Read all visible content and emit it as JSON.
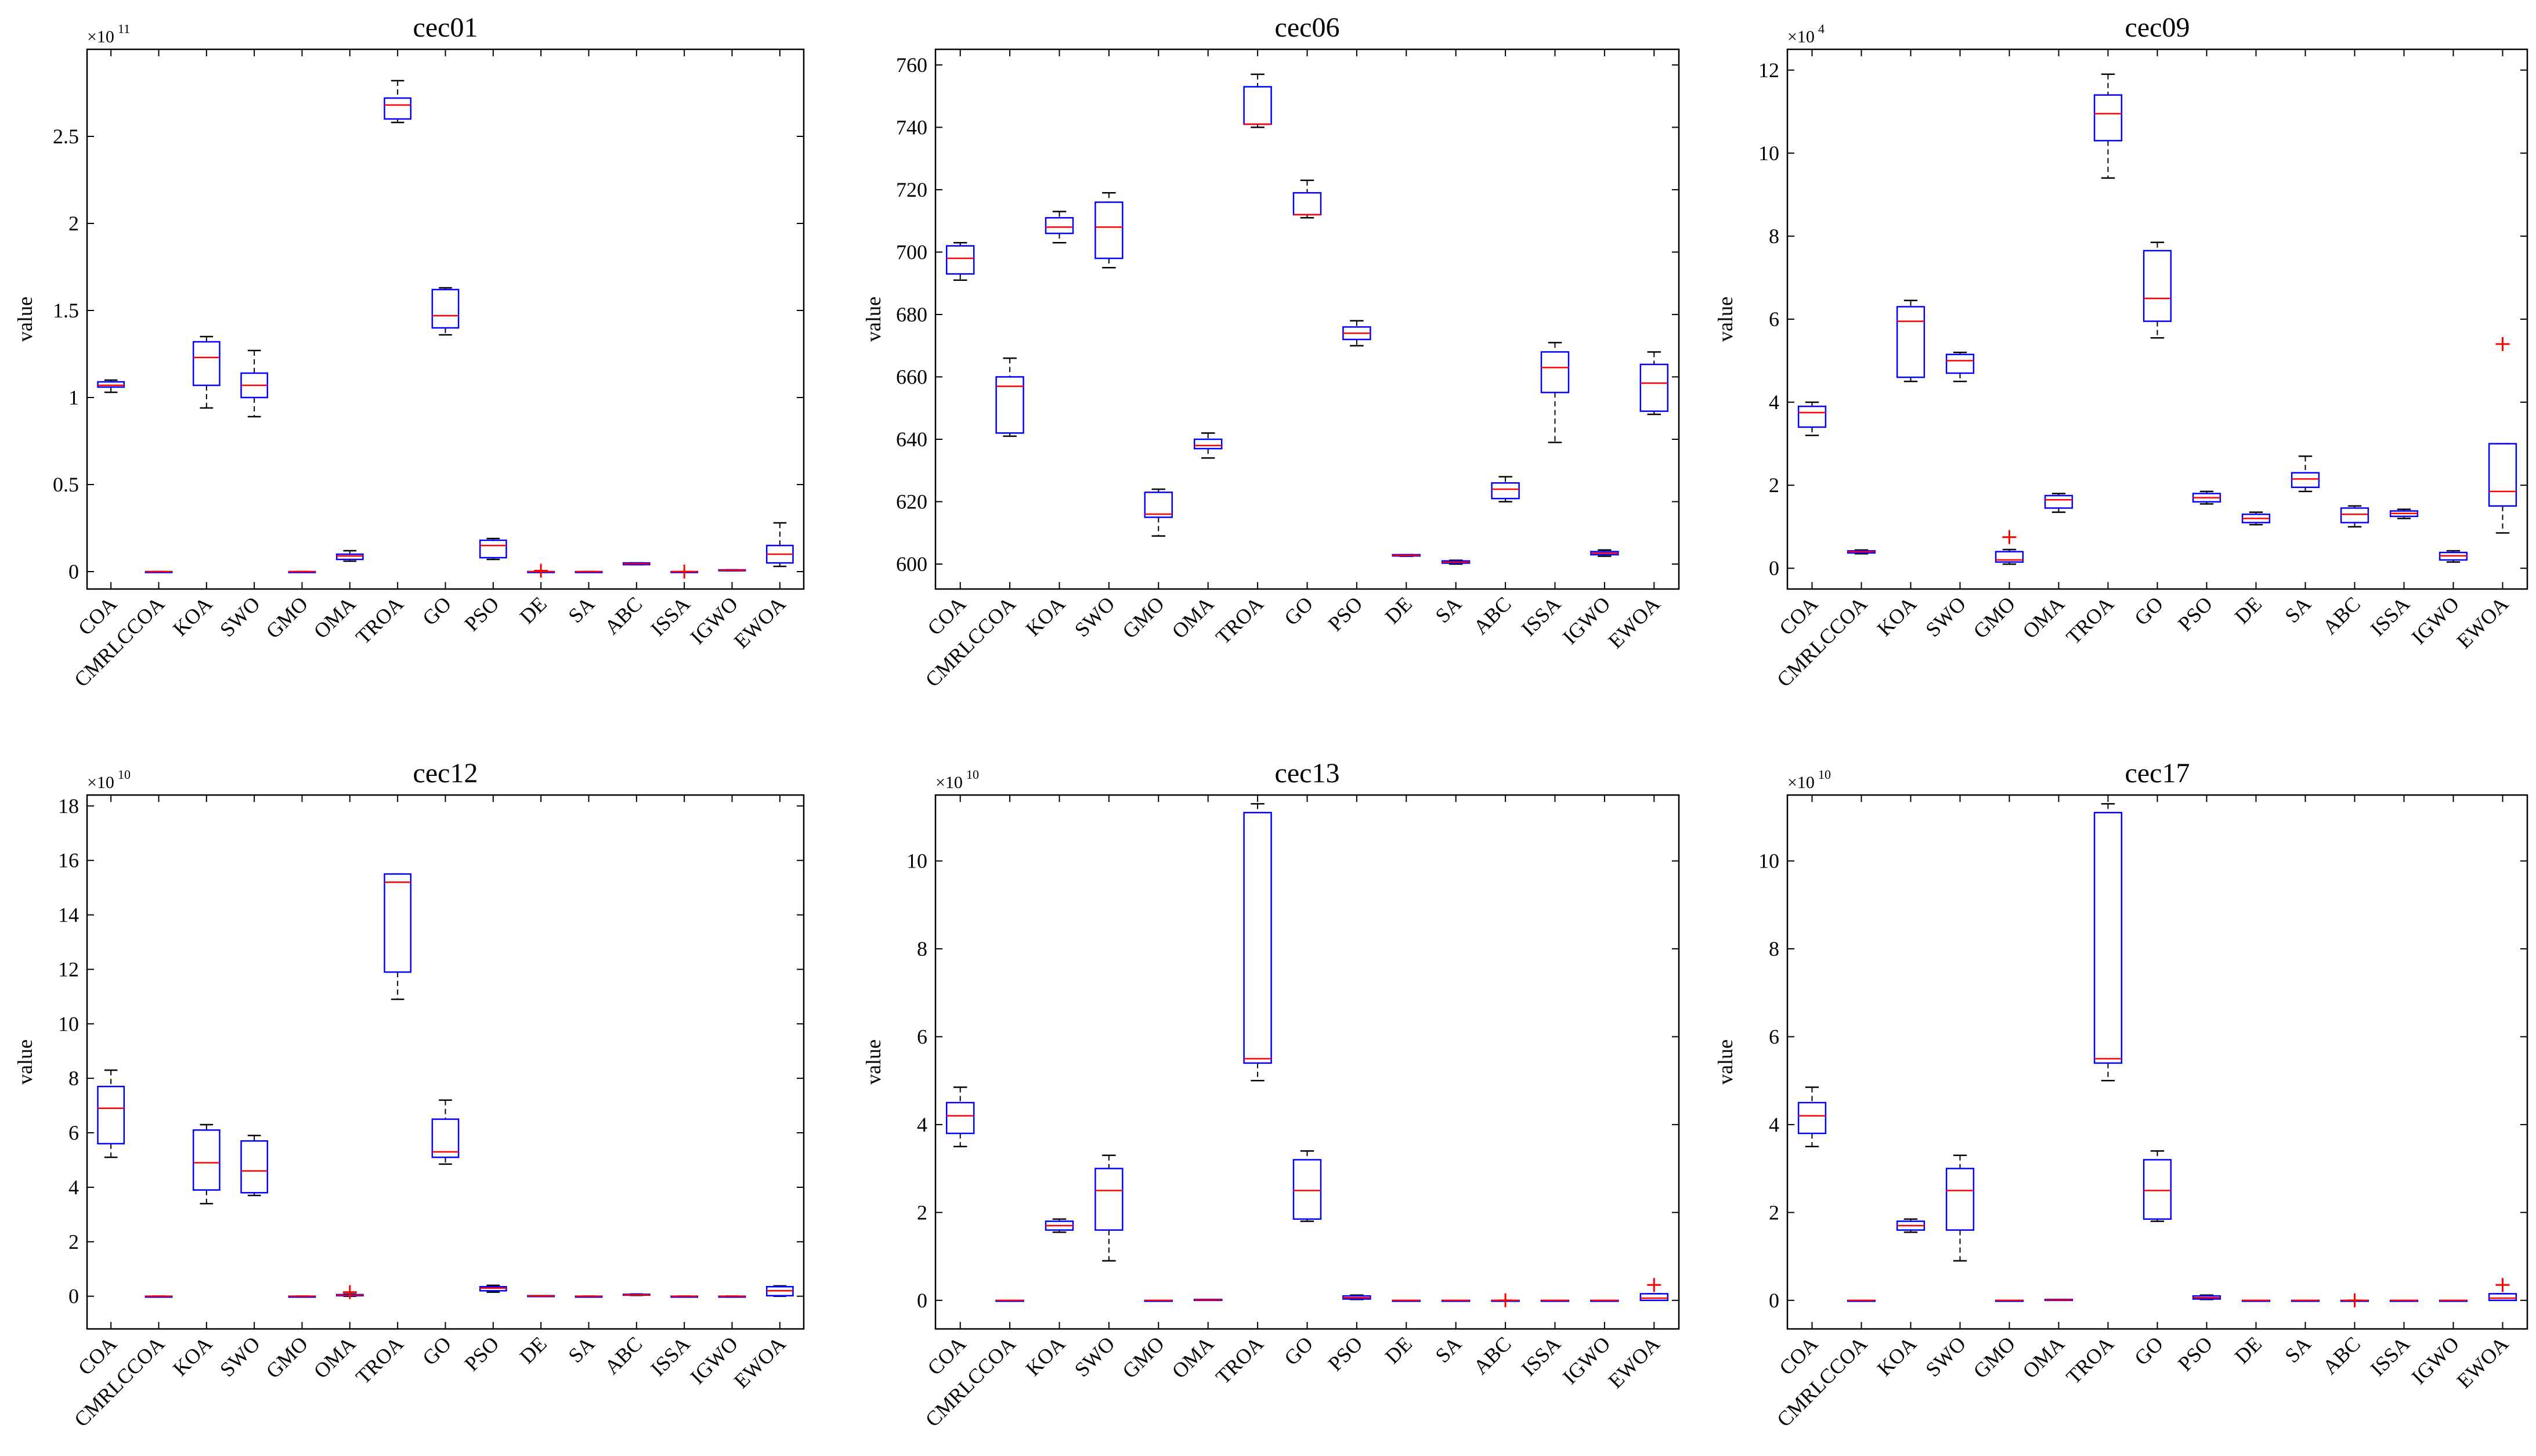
{
  "chart_data": [
    {
      "type": "box",
      "title": "cec01",
      "ylabel": "value",
      "multiplier": "×10",
      "exponent": "11",
      "ylim": [
        -0.1,
        3.0
      ],
      "yticks": [
        0,
        0.5,
        1,
        1.5,
        2,
        2.5
      ],
      "ytick_labels": [
        "0",
        "0.5",
        "1",
        "1.5",
        "2",
        "2.5"
      ],
      "categories": [
        "COA",
        "CMRLCCOA",
        "KOA",
        "SWO",
        "GMO",
        "OMA",
        "TROA",
        "GO",
        "PSO",
        "DE",
        "SA",
        "ABC",
        "ISSA",
        "IGWO",
        "EWOA"
      ],
      "boxes": [
        {
          "min": 1.03,
          "q1": 1.06,
          "median": 1.07,
          "q3": 1.09,
          "max": 1.1,
          "outliers": []
        },
        {
          "min": 0.0,
          "q1": 0.0,
          "median": 0.0,
          "q3": 0.0,
          "max": 0.0,
          "outliers": []
        },
        {
          "min": 0.94,
          "q1": 1.07,
          "median": 1.23,
          "q3": 1.32,
          "max": 1.35,
          "outliers": []
        },
        {
          "min": 0.89,
          "q1": 1.0,
          "median": 1.07,
          "q3": 1.14,
          "max": 1.27,
          "outliers": []
        },
        {
          "min": 0.0,
          "q1": 0.0,
          "median": 0.0,
          "q3": 0.0,
          "max": 0.0,
          "outliers": []
        },
        {
          "min": 0.06,
          "q1": 0.07,
          "median": 0.09,
          "q3": 0.1,
          "max": 0.12,
          "outliers": []
        },
        {
          "min": 2.58,
          "q1": 2.6,
          "median": 2.68,
          "q3": 2.72,
          "max": 2.82,
          "outliers": []
        },
        {
          "min": 1.36,
          "q1": 1.4,
          "median": 1.47,
          "q3": 1.62,
          "max": 1.63,
          "outliers": []
        },
        {
          "min": 0.07,
          "q1": 0.08,
          "median": 0.15,
          "q3": 0.18,
          "max": 0.19,
          "outliers": []
        },
        {
          "min": 0.0,
          "q1": 0.0,
          "median": 0.0,
          "q3": 0.0,
          "max": 0.0,
          "outliers": [
            0.005
          ]
        },
        {
          "min": 0.0,
          "q1": 0.0,
          "median": 0.0,
          "q3": 0.0,
          "max": 0.0,
          "outliers": []
        },
        {
          "min": 0.04,
          "q1": 0.04,
          "median": 0.045,
          "q3": 0.05,
          "max": 0.05,
          "outliers": []
        },
        {
          "min": 0.0,
          "q1": 0.0,
          "median": 0.0,
          "q3": 0.0,
          "max": 0.0,
          "outliers": [
            0.0
          ]
        },
        {
          "min": 0.005,
          "q1": 0.006,
          "median": 0.008,
          "q3": 0.01,
          "max": 0.01,
          "outliers": []
        },
        {
          "min": 0.03,
          "q1": 0.05,
          "median": 0.1,
          "q3": 0.15,
          "max": 0.28,
          "outliers": []
        }
      ]
    },
    {
      "type": "box",
      "title": "cec06",
      "ylabel": "value",
      "multiplier": "",
      "exponent": "",
      "ylim": [
        592,
        765
      ],
      "yticks": [
        600,
        620,
        640,
        660,
        680,
        700,
        720,
        740,
        760
      ],
      "ytick_labels": [
        "600",
        "620",
        "640",
        "660",
        "680",
        "700",
        "720",
        "740",
        "760"
      ],
      "categories": [
        "COA",
        "CMRLCCOA",
        "KOA",
        "SWO",
        "GMO",
        "OMA",
        "TROA",
        "GO",
        "PSO",
        "DE",
        "SA",
        "ABC",
        "ISSA",
        "IGWO",
        "EWOA"
      ],
      "boxes": [
        {
          "min": 691,
          "q1": 693,
          "median": 698,
          "q3": 702,
          "max": 703,
          "outliers": []
        },
        {
          "min": 641,
          "q1": 642,
          "median": 657,
          "q3": 660,
          "max": 666,
          "outliers": []
        },
        {
          "min": 703,
          "q1": 706,
          "median": 708,
          "q3": 711,
          "max": 713,
          "outliers": []
        },
        {
          "min": 695,
          "q1": 698,
          "median": 708,
          "q3": 716,
          "max": 719,
          "outliers": []
        },
        {
          "min": 609,
          "q1": 615,
          "median": 616,
          "q3": 623,
          "max": 624,
          "outliers": []
        },
        {
          "min": 634,
          "q1": 637,
          "median": 638,
          "q3": 640,
          "max": 642,
          "outliers": []
        },
        {
          "min": 740,
          "q1": 741,
          "median": 741,
          "q3": 753,
          "max": 757,
          "outliers": []
        },
        {
          "min": 711,
          "q1": 712,
          "median": 712,
          "q3": 719,
          "max": 723,
          "outliers": []
        },
        {
          "min": 670,
          "q1": 672,
          "median": 674,
          "q3": 676,
          "max": 678,
          "outliers": []
        },
        {
          "min": 602.5,
          "q1": 602.6,
          "median": 602.8,
          "q3": 603,
          "max": 603,
          "outliers": []
        },
        {
          "min": 600,
          "q1": 600.3,
          "median": 600.6,
          "q3": 601,
          "max": 601.2,
          "outliers": []
        },
        {
          "min": 620,
          "q1": 621,
          "median": 624,
          "q3": 626,
          "max": 628,
          "outliers": []
        },
        {
          "min": 639,
          "q1": 655,
          "median": 663,
          "q3": 668,
          "max": 671,
          "outliers": []
        },
        {
          "min": 602.5,
          "q1": 603,
          "median": 603.5,
          "q3": 604,
          "max": 604.5,
          "outliers": []
        },
        {
          "min": 648,
          "q1": 649,
          "median": 658,
          "q3": 664,
          "max": 668,
          "outliers": []
        }
      ]
    },
    {
      "type": "box",
      "title": "cec09",
      "ylabel": "value",
      "multiplier": "×10",
      "exponent": "4",
      "ylim": [
        -0.5,
        12.5
      ],
      "yticks": [
        0,
        2,
        4,
        6,
        8,
        10,
        12
      ],
      "ytick_labels": [
        "0",
        "2",
        "4",
        "6",
        "8",
        "10",
        "12"
      ],
      "categories": [
        "COA",
        "CMRLCCOA",
        "KOA",
        "SWO",
        "GMO",
        "OMA",
        "TROA",
        "GO",
        "PSO",
        "DE",
        "SA",
        "ABC",
        "ISSA",
        "IGWO",
        "EWOA"
      ],
      "boxes": [
        {
          "min": 3.2,
          "q1": 3.4,
          "median": 3.75,
          "q3": 3.9,
          "max": 4.0,
          "outliers": []
        },
        {
          "min": 0.35,
          "q1": 0.37,
          "median": 0.4,
          "q3": 0.42,
          "max": 0.44,
          "outliers": []
        },
        {
          "min": 4.5,
          "q1": 4.6,
          "median": 5.95,
          "q3": 6.3,
          "max": 6.45,
          "outliers": []
        },
        {
          "min": 4.5,
          "q1": 4.7,
          "median": 5.0,
          "q3": 5.15,
          "max": 5.2,
          "outliers": []
        },
        {
          "min": 0.1,
          "q1": 0.15,
          "median": 0.2,
          "q3": 0.4,
          "max": 0.45,
          "outliers": [
            0.75
          ]
        },
        {
          "min": 1.35,
          "q1": 1.45,
          "median": 1.65,
          "q3": 1.75,
          "max": 1.8,
          "outliers": []
        },
        {
          "min": 9.4,
          "q1": 10.3,
          "median": 10.95,
          "q3": 11.4,
          "max": 11.9,
          "outliers": []
        },
        {
          "min": 5.55,
          "q1": 5.95,
          "median": 6.5,
          "q3": 7.65,
          "max": 7.85,
          "outliers": []
        },
        {
          "min": 1.55,
          "q1": 1.6,
          "median": 1.7,
          "q3": 1.8,
          "max": 1.85,
          "outliers": []
        },
        {
          "min": 1.05,
          "q1": 1.1,
          "median": 1.2,
          "q3": 1.3,
          "max": 1.35,
          "outliers": []
        },
        {
          "min": 1.85,
          "q1": 1.95,
          "median": 2.15,
          "q3": 2.3,
          "max": 2.7,
          "outliers": []
        },
        {
          "min": 1.0,
          "q1": 1.1,
          "median": 1.3,
          "q3": 1.45,
          "max": 1.5,
          "outliers": []
        },
        {
          "min": 1.2,
          "q1": 1.25,
          "median": 1.32,
          "q3": 1.38,
          "max": 1.42,
          "outliers": []
        },
        {
          "min": 0.15,
          "q1": 0.2,
          "median": 0.3,
          "q3": 0.38,
          "max": 0.42,
          "outliers": []
        },
        {
          "min": 0.85,
          "q1": 1.5,
          "median": 1.85,
          "q3": 3.0,
          "max": 3.0,
          "outliers": [
            5.4
          ]
        }
      ]
    },
    {
      "type": "box",
      "title": "cec12",
      "ylabel": "value",
      "multiplier": "×10",
      "exponent": "10",
      "ylim": [
        -1.2,
        18.4
      ],
      "yticks": [
        0,
        2,
        4,
        6,
        8,
        10,
        12,
        14,
        16,
        18
      ],
      "ytick_labels": [
        "0",
        "2",
        "4",
        "6",
        "8",
        "10",
        "12",
        "14",
        "16",
        "18"
      ],
      "categories": [
        "COA",
        "CMRLCCOA",
        "KOA",
        "SWO",
        "GMO",
        "OMA",
        "TROA",
        "GO",
        "PSO",
        "DE",
        "SA",
        "ABC",
        "ISSA",
        "IGWO",
        "EWOA"
      ],
      "boxes": [
        {
          "min": 5.1,
          "q1": 5.6,
          "median": 6.9,
          "q3": 7.7,
          "max": 8.3,
          "outliers": []
        },
        {
          "min": 0.0,
          "q1": 0.0,
          "median": 0.0,
          "q3": 0.0,
          "max": 0.0,
          "outliers": []
        },
        {
          "min": 3.4,
          "q1": 3.9,
          "median": 4.9,
          "q3": 6.1,
          "max": 6.3,
          "outliers": []
        },
        {
          "min": 3.7,
          "q1": 3.8,
          "median": 4.6,
          "q3": 5.7,
          "max": 5.9,
          "outliers": []
        },
        {
          "min": 0.0,
          "q1": 0.0,
          "median": 0.0,
          "q3": 0.0,
          "max": 0.0,
          "outliers": []
        },
        {
          "min": 0.0,
          "q1": 0.02,
          "median": 0.04,
          "q3": 0.06,
          "max": 0.08,
          "outliers": [
            0.15
          ]
        },
        {
          "min": 10.9,
          "q1": 11.9,
          "median": 15.2,
          "q3": 15.5,
          "max": 15.5,
          "outliers": []
        },
        {
          "min": 4.85,
          "q1": 5.1,
          "median": 5.3,
          "q3": 6.5,
          "max": 7.2,
          "outliers": []
        },
        {
          "min": 0.15,
          "q1": 0.2,
          "median": 0.3,
          "q3": 0.35,
          "max": 0.4,
          "outliers": []
        },
        {
          "min": 0.0,
          "q1": 0.0,
          "median": 0.01,
          "q3": 0.02,
          "max": 0.02,
          "outliers": []
        },
        {
          "min": 0.0,
          "q1": 0.0,
          "median": 0.0,
          "q3": 0.0,
          "max": 0.0,
          "outliers": []
        },
        {
          "min": 0.03,
          "q1": 0.04,
          "median": 0.05,
          "q3": 0.07,
          "max": 0.08,
          "outliers": []
        },
        {
          "min": 0.0,
          "q1": 0.0,
          "median": 0.0,
          "q3": 0.0,
          "max": 0.0,
          "outliers": []
        },
        {
          "min": 0.0,
          "q1": 0.0,
          "median": 0.0,
          "q3": 0.0,
          "max": 0.0,
          "outliers": []
        },
        {
          "min": 0.0,
          "q1": 0.02,
          "median": 0.2,
          "q3": 0.35,
          "max": 0.38,
          "outliers": []
        }
      ]
    },
    {
      "type": "box",
      "title": "cec13",
      "ylabel": "value",
      "multiplier": "×10",
      "exponent": "10",
      "ylim": [
        -0.65,
        11.5
      ],
      "yticks": [
        0,
        2,
        4,
        6,
        8,
        10
      ],
      "ytick_labels": [
        "0",
        "2",
        "4",
        "6",
        "8",
        "10"
      ],
      "categories": [
        "COA",
        "CMRLCCOA",
        "KOA",
        "SWO",
        "GMO",
        "OMA",
        "TROA",
        "GO",
        "PSO",
        "DE",
        "SA",
        "ABC",
        "ISSA",
        "IGWO",
        "EWOA"
      ],
      "boxes": [
        {
          "min": 3.5,
          "q1": 3.8,
          "median": 4.2,
          "q3": 4.5,
          "max": 4.85,
          "outliers": []
        },
        {
          "min": 0.0,
          "q1": 0.0,
          "median": 0.0,
          "q3": 0.0,
          "max": 0.0,
          "outliers": []
        },
        {
          "min": 1.55,
          "q1": 1.6,
          "median": 1.7,
          "q3": 1.8,
          "max": 1.85,
          "outliers": []
        },
        {
          "min": 0.9,
          "q1": 1.6,
          "median": 2.5,
          "q3": 3.0,
          "max": 3.3,
          "outliers": []
        },
        {
          "min": 0.0,
          "q1": 0.0,
          "median": 0.0,
          "q3": 0.0,
          "max": 0.0,
          "outliers": []
        },
        {
          "min": 0.0,
          "q1": 0.0,
          "median": 0.01,
          "q3": 0.02,
          "max": 0.02,
          "outliers": []
        },
        {
          "min": 5.0,
          "q1": 5.4,
          "median": 5.5,
          "q3": 11.1,
          "max": 11.3,
          "outliers": []
        },
        {
          "min": 1.8,
          "q1": 1.85,
          "median": 2.5,
          "q3": 3.2,
          "max": 3.4,
          "outliers": []
        },
        {
          "min": 0.02,
          "q1": 0.03,
          "median": 0.06,
          "q3": 0.1,
          "max": 0.12,
          "outliers": []
        },
        {
          "min": 0.0,
          "q1": 0.0,
          "median": 0.0,
          "q3": 0.0,
          "max": 0.0,
          "outliers": []
        },
        {
          "min": 0.0,
          "q1": 0.0,
          "median": 0.0,
          "q3": 0.0,
          "max": 0.0,
          "outliers": []
        },
        {
          "min": 0.0,
          "q1": 0.0,
          "median": 0.0,
          "q3": 0.0,
          "max": 0.0,
          "outliers": [
            0.0
          ]
        },
        {
          "min": 0.0,
          "q1": 0.0,
          "median": 0.0,
          "q3": 0.0,
          "max": 0.0,
          "outliers": []
        },
        {
          "min": 0.0,
          "q1": 0.0,
          "median": 0.0,
          "q3": 0.0,
          "max": 0.0,
          "outliers": []
        },
        {
          "min": 0.0,
          "q1": 0.0,
          "median": 0.05,
          "q3": 0.15,
          "max": 0.15,
          "outliers": [
            0.35
          ]
        }
      ]
    },
    {
      "type": "box",
      "title": "cec17",
      "ylabel": "value",
      "multiplier": "×10",
      "exponent": "10",
      "ylim": [
        -0.65,
        11.5
      ],
      "yticks": [
        0,
        2,
        4,
        6,
        8,
        10
      ],
      "ytick_labels": [
        "0",
        "2",
        "4",
        "6",
        "8",
        "10"
      ],
      "categories": [
        "COA",
        "CMRLCCOA",
        "KOA",
        "SWO",
        "GMO",
        "OMA",
        "TROA",
        "GO",
        "PSO",
        "DE",
        "SA",
        "ABC",
        "ISSA",
        "IGWO",
        "EWOA"
      ],
      "boxes": [
        {
          "min": 3.5,
          "q1": 3.8,
          "median": 4.2,
          "q3": 4.5,
          "max": 4.85,
          "outliers": []
        },
        {
          "min": 0.0,
          "q1": 0.0,
          "median": 0.0,
          "q3": 0.0,
          "max": 0.0,
          "outliers": []
        },
        {
          "min": 1.55,
          "q1": 1.6,
          "median": 1.7,
          "q3": 1.8,
          "max": 1.85,
          "outliers": []
        },
        {
          "min": 0.9,
          "q1": 1.6,
          "median": 2.5,
          "q3": 3.0,
          "max": 3.3,
          "outliers": []
        },
        {
          "min": 0.0,
          "q1": 0.0,
          "median": 0.0,
          "q3": 0.0,
          "max": 0.0,
          "outliers": []
        },
        {
          "min": 0.0,
          "q1": 0.0,
          "median": 0.01,
          "q3": 0.02,
          "max": 0.02,
          "outliers": []
        },
        {
          "min": 5.0,
          "q1": 5.4,
          "median": 5.5,
          "q3": 11.1,
          "max": 11.3,
          "outliers": []
        },
        {
          "min": 1.8,
          "q1": 1.85,
          "median": 2.5,
          "q3": 3.2,
          "max": 3.4,
          "outliers": []
        },
        {
          "min": 0.02,
          "q1": 0.03,
          "median": 0.06,
          "q3": 0.1,
          "max": 0.12,
          "outliers": []
        },
        {
          "min": 0.0,
          "q1": 0.0,
          "median": 0.0,
          "q3": 0.0,
          "max": 0.0,
          "outliers": []
        },
        {
          "min": 0.0,
          "q1": 0.0,
          "median": 0.0,
          "q3": 0.0,
          "max": 0.0,
          "outliers": []
        },
        {
          "min": 0.0,
          "q1": 0.0,
          "median": 0.0,
          "q3": 0.0,
          "max": 0.0,
          "outliers": [
            0.0
          ]
        },
        {
          "min": 0.0,
          "q1": 0.0,
          "median": 0.0,
          "q3": 0.0,
          "max": 0.0,
          "outliers": []
        },
        {
          "min": 0.0,
          "q1": 0.0,
          "median": 0.0,
          "q3": 0.0,
          "max": 0.0,
          "outliers": []
        },
        {
          "min": 0.0,
          "q1": 0.0,
          "median": 0.05,
          "q3": 0.15,
          "max": 0.15,
          "outliers": [
            0.35
          ]
        }
      ]
    }
  ],
  "colors": {
    "box": "#0000ff",
    "median": "#ff0000",
    "whisker": "#000000",
    "outlier": "#ff0000",
    "axes": "#000000"
  }
}
